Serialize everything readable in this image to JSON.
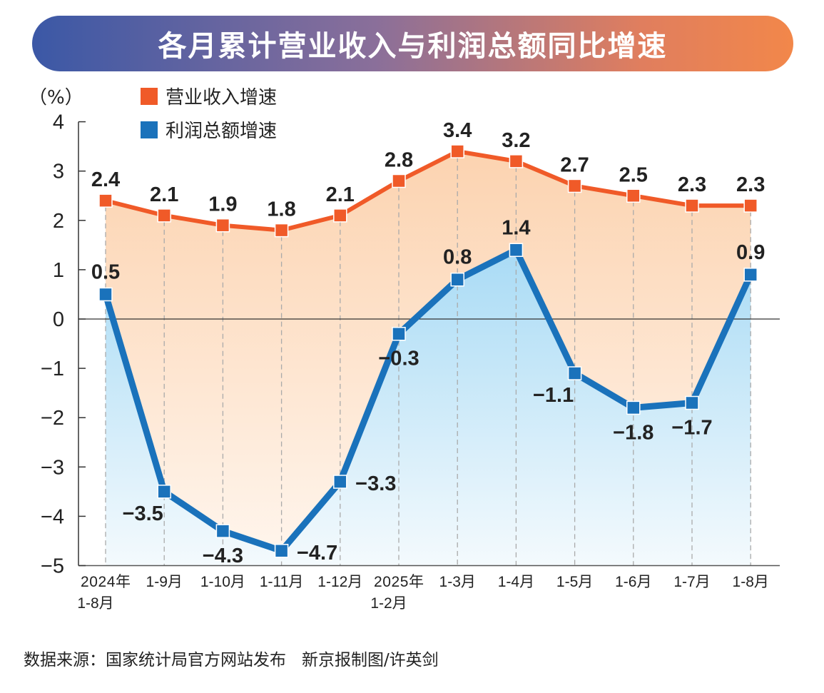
{
  "chart_data": {
    "type": "line",
    "title": "各月累计营业收入与利润总额同比增速",
    "ylabel": "（%）",
    "ylim": [
      -5,
      4
    ],
    "yticks": [
      4,
      3,
      2,
      1,
      0,
      -1,
      -2,
      -3,
      -4,
      -5
    ],
    "categories": [
      [
        "2024年",
        "1-8月"
      ],
      [
        "1-9月"
      ],
      [
        "1-10月"
      ],
      [
        "1-11月"
      ],
      [
        "1-12月"
      ],
      [
        "2025年",
        "1-2月"
      ],
      [
        "1-3月"
      ],
      [
        "1-4月"
      ],
      [
        "1-5月"
      ],
      [
        "1-6月"
      ],
      [
        "1-7月"
      ],
      [
        "1-8月"
      ]
    ],
    "series": [
      {
        "name": "营业收入增速",
        "color": "#f05a28",
        "values": [
          2.4,
          2.1,
          1.9,
          1.8,
          2.1,
          2.8,
          3.4,
          3.2,
          2.7,
          2.5,
          2.3,
          2.3
        ]
      },
      {
        "name": "利润总额增速",
        "color": "#1a72bb",
        "values": [
          0.5,
          -3.5,
          -4.3,
          -4.7,
          -3.3,
          -0.3,
          0.8,
          1.4,
          -1.1,
          -1.8,
          -1.7,
          0.9
        ]
      }
    ],
    "legend": "top-left",
    "grid": "vertical dashed"
  },
  "footer": {
    "source": "数据来源：国家统计局官方网站发布",
    "credit": "新京报制图/许英剑"
  }
}
